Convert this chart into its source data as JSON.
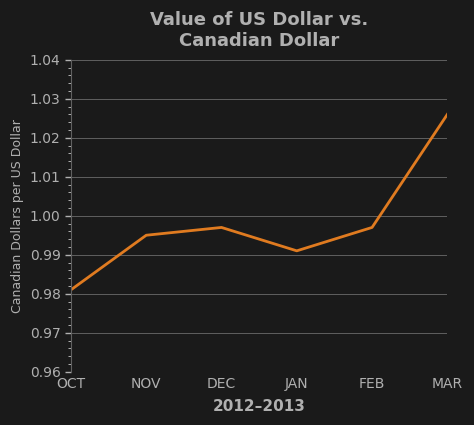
{
  "title": "Value of US Dollar vs.\nCanadian Dollar",
  "xlabel": "2012–2013",
  "ylabel": "Canadian Dollars per US Dollar",
  "x_labels": [
    "OCT",
    "NOV",
    "DEC",
    "JAN",
    "FEB",
    "MAR"
  ],
  "x_values": [
    0,
    1,
    2,
    3,
    4,
    5
  ],
  "y_values": [
    0.981,
    0.995,
    0.997,
    0.991,
    0.997,
    1.026
  ],
  "line_color": "#e07b20",
  "line_width": 2.0,
  "ylim": [
    0.96,
    1.04
  ],
  "yticks": [
    0.96,
    0.97,
    0.98,
    0.99,
    1.0,
    1.01,
    1.02,
    1.03,
    1.04
  ],
  "background_color": "#1a1a1a",
  "grid_color": "#606060",
  "text_color": "#b0b0b0",
  "title_fontsize": 13,
  "label_fontsize": 9,
  "tick_fontsize": 10
}
